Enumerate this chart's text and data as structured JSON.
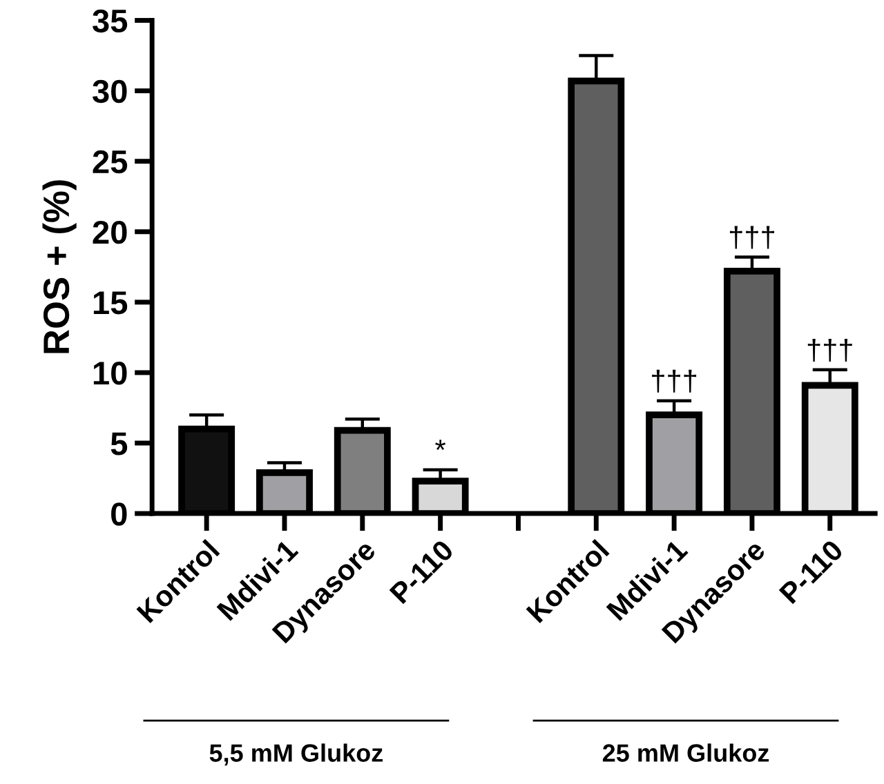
{
  "chart_data": {
    "type": "bar",
    "ylabel": "ROS + (%)",
    "categories": [
      "Kontrol",
      "Mdivi-1",
      "Dynasore",
      "P-110",
      null,
      "Kontrol",
      "Mdivi-1",
      "Dynasore",
      "P-110"
    ],
    "values": [
      6.0,
      2.9,
      5.9,
      2.3,
      null,
      30.7,
      7.0,
      17.2,
      9.1
    ],
    "errors": [
      [
        6.0,
        7.0
      ],
      [
        2.9,
        3.6
      ],
      [
        5.9,
        6.7
      ],
      [
        2.3,
        3.1
      ],
      null,
      [
        30.7,
        32.5
      ],
      [
        7.0,
        8.0
      ],
      [
        17.2,
        18.2
      ],
      [
        9.1,
        10.2
      ]
    ],
    "colors": [
      "#111111",
      "#a0a0a4",
      "#7f7f7f",
      "#d8d8d8",
      "#ffffff",
      "#5f5f5f",
      "#a0a0a4",
      "#5f5f5f",
      "#e6e6e6"
    ],
    "value_labels": [
      null,
      null,
      null,
      "*",
      null,
      null,
      "†††",
      "†††",
      "†††"
    ],
    "annotations": [
      "5,5 mM Glukoz",
      "25 mM Glukoz"
    ],
    "ylim": [
      0,
      35
    ],
    "yticks": [
      0,
      5,
      10,
      15,
      20,
      25,
      30,
      35
    ],
    "grid": false,
    "legend": false
  }
}
